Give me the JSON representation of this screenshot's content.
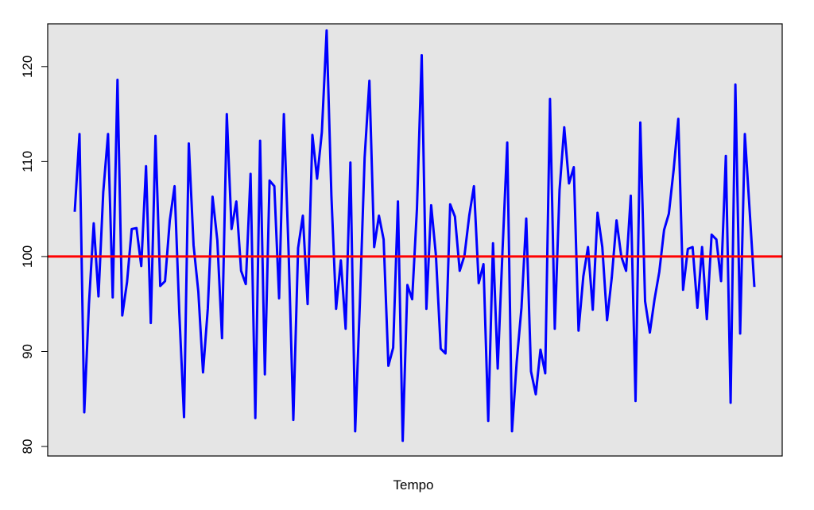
{
  "chart_data": {
    "type": "line",
    "title": "",
    "xlabel": "Tempo",
    "ylabel": "",
    "ylim": [
      79,
      124.5
    ],
    "y_ticks": [
      80,
      90,
      100,
      110,
      120
    ],
    "grid": false,
    "background": "#e5e5e5",
    "series": [
      {
        "color": "#0000ff",
        "values": [
          104.7,
          112.9,
          83.6,
          95.0,
          103.5,
          95.8,
          106.8,
          112.9,
          95.7,
          118.6,
          93.8,
          97.3,
          102.9,
          103.0,
          99.0,
          109.5,
          93.0,
          112.7,
          96.9,
          97.4,
          103.8,
          107.4,
          94.2,
          83.1,
          111.9,
          101.2,
          96.3,
          87.8,
          94.5,
          106.3,
          101.7,
          91.4,
          115.0,
          102.9,
          105.8,
          98.5,
          97.1,
          108.7,
          83.0,
          112.2,
          87.6,
          108.0,
          107.4,
          95.6,
          115.0,
          100.4,
          82.8,
          100.9,
          104.3,
          95.0,
          112.8,
          108.2,
          113.1,
          123.8,
          106.4,
          94.5,
          99.6,
          92.4,
          109.9,
          81.6,
          95.1,
          110.4,
          118.5,
          101.0,
          104.3,
          101.8,
          88.5,
          90.4,
          105.8,
          80.6,
          97.0,
          95.5,
          105.0,
          121.2,
          94.5,
          105.4,
          100.1,
          90.3,
          89.8,
          105.5,
          104.2,
          98.5,
          100.1,
          104.3,
          107.4,
          97.2,
          99.2,
          82.7,
          101.4,
          88.2,
          100.5,
          112.0,
          81.6,
          88.9,
          94.6,
          104.0,
          87.9,
          85.5,
          90.2,
          87.7,
          116.6,
          92.4,
          107.0,
          113.6,
          107.7,
          109.4,
          92.2,
          97.9,
          101.0,
          94.4,
          104.6,
          101.0,
          93.3,
          97.8,
          103.8,
          100.0,
          98.5,
          106.4,
          84.8,
          114.1,
          95.3,
          92.0,
          95.5,
          98.4,
          102.8,
          104.5,
          109.1,
          114.5,
          96.5,
          100.8,
          101.0,
          94.6,
          101.0,
          93.4,
          102.3,
          101.8,
          97.4,
          110.6,
          84.6,
          118.1,
          91.9,
          112.9,
          104.9,
          96.8
        ]
      },
      {
        "color": "#ff0000",
        "reference_value": 100
      }
    ]
  }
}
